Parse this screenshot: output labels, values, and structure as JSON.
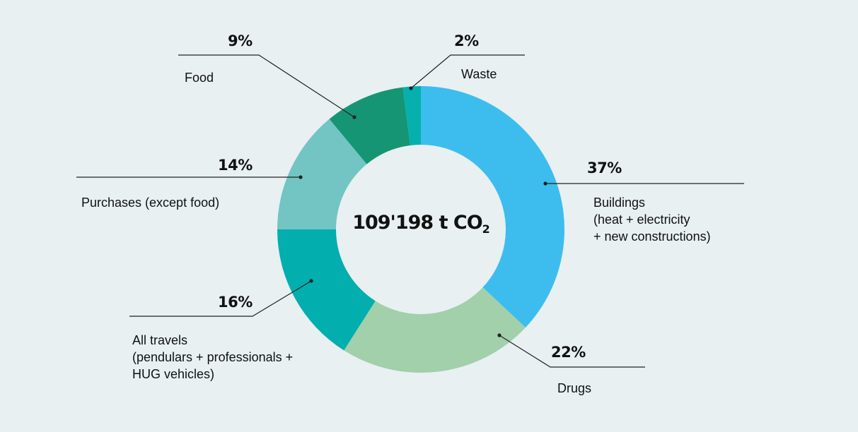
{
  "chart_data": {
    "type": "pie",
    "variant": "donut",
    "center_label": {
      "value": "109'198 t CO",
      "subscript": "2"
    },
    "start_angle": "12 o'clock",
    "direction": "clockwise",
    "slices": [
      {
        "name": "Buildings (heat + electricity + new constructions)",
        "value": 37,
        "label_pct": "37%",
        "label_lines": "Buildings\n(heat + electricity\n+ new constructions)",
        "color": "#3dbdee"
      },
      {
        "name": "Drugs",
        "value": 22,
        "label_pct": "22%",
        "label_lines": "Drugs",
        "color": "#a1d0ab"
      },
      {
        "name": "All travels (pendulars + professionals + HUG vehicles)",
        "value": 16,
        "label_pct": "16%",
        "label_lines": "All travels\n(pendulars + professionals +\nHUG vehicles)",
        "color": "#02aeae"
      },
      {
        "name": "Purchases (except food)",
        "value": 14,
        "label_pct": "14%",
        "label_lines": "Purchases (except food)",
        "color": "#72c5c2"
      },
      {
        "name": "Food",
        "value": 9,
        "label_pct": "9%",
        "label_lines": "Food",
        "color": "#169574"
      },
      {
        "name": "Waste",
        "value": 2,
        "label_pct": "2%",
        "label_lines": "Waste",
        "color": "#05b0ae"
      }
    ]
  },
  "colors": {
    "background": "#e8f0f2",
    "text": "#111111",
    "leader": "#222222"
  }
}
